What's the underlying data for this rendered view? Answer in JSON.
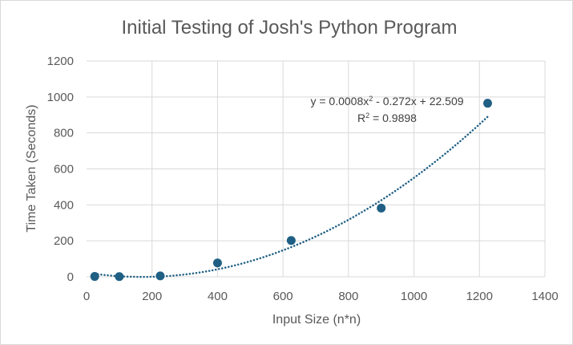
{
  "chart_data": {
    "type": "scatter",
    "title": "Initial Testing of Josh's Python Program",
    "xlabel": "Input Size (n*n)",
    "ylabel": "Time Taken (Seconds)",
    "xlim": [
      0,
      1400
    ],
    "ylim": [
      0,
      1200
    ],
    "x_ticks": [
      "0",
      "200",
      "400",
      "600",
      "800",
      "1000",
      "1200",
      "1400"
    ],
    "y_ticks": [
      "0",
      "200",
      "400",
      "600",
      "800",
      "1000",
      "1200"
    ],
    "grid": true,
    "legend": "none",
    "marker_color": "#1f5f84",
    "series": [
      {
        "x": [
          25,
          100,
          225,
          400,
          625,
          900,
          1225
        ],
        "y": [
          2,
          1,
          5,
          77,
          202,
          382,
          965
        ]
      }
    ],
    "trendline": {
      "type": "polynomial-2",
      "coefficients": [
        0.0008,
        -0.272,
        22.509
      ],
      "style": "dotted",
      "color": "#1f5f84",
      "equation_prefix": "y = 0.0008x",
      "equation_sup": "2",
      "equation_suffix": " - 0.272x + 22.509",
      "r2_prefix": "R",
      "r2_sup": "2",
      "r2_suffix": " = 0.9898"
    }
  }
}
